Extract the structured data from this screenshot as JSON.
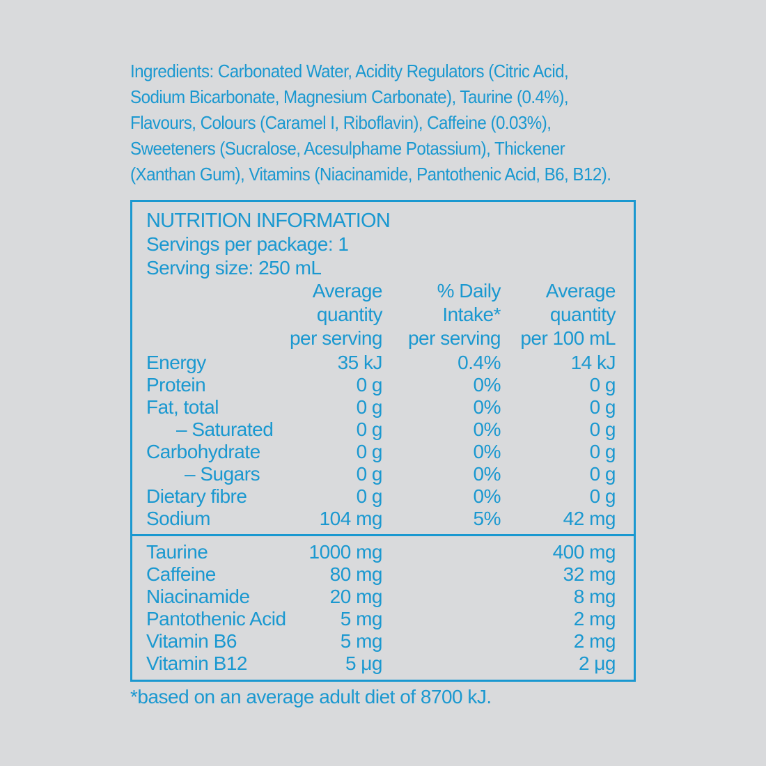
{
  "ingredients": [
    "Ingredients: Carbonated Water, Acidity Regulators (Citric Acid,",
    "Sodium Bicarbonate, Magnesium Carbonate), Taurine (0.4%),",
    "Flavours, Colours (Caramel I, Riboflavin), Caffeine (0.03%),",
    "Sweeteners (Sucralose, Acesulphame Potassium), Thickener",
    "(Xanthan Gum), Vitamins (Niacinamide, Pantothenic Acid, B6, B12)."
  ],
  "nutrition": {
    "title": "NUTRITION INFORMATION",
    "servings": "Servings per package: 1",
    "serving_size": "Serving size: 250 mL",
    "columns": [
      [
        "Average",
        "quantity",
        "per serving"
      ],
      [
        "% Daily",
        "Intake*",
        "per serving"
      ],
      [
        "Average",
        "quantity",
        "per 100 mL"
      ]
    ],
    "rows": [
      {
        "label": "Energy",
        "per_serving": "35 kJ",
        "di": "0.4%",
        "per_100": "14 kJ"
      },
      {
        "label": "Protein",
        "per_serving": "0 g",
        "di": "0%",
        "per_100": "0 g"
      },
      {
        "label": "Fat, total",
        "per_serving": "0 g",
        "di": "0%",
        "per_100": "0 g"
      },
      {
        "label": "– Saturated",
        "per_serving": "0 g",
        "di": "0%",
        "per_100": "0 g"
      },
      {
        "label": "Carbohydrate",
        "per_serving": "0 g",
        "di": "0%",
        "per_100": "0 g"
      },
      {
        "label": "– Sugars",
        "per_serving": "0 g",
        "di": "0%",
        "per_100": "0 g"
      },
      {
        "label": "Dietary fibre",
        "per_serving": "0 g",
        "di": "0%",
        "per_100": "0 g"
      },
      {
        "label": "Sodium",
        "per_serving": "104 mg",
        "di": "5%",
        "per_100": "42 mg"
      }
    ],
    "extras": [
      {
        "label": "Taurine",
        "per_serving": "1000 mg",
        "per_100": "400 mg"
      },
      {
        "label": "Caffeine",
        "per_serving": "80 mg",
        "per_100": "32 mg"
      },
      {
        "label": "Niacinamide",
        "per_serving": "20 mg",
        "per_100": "8 mg"
      },
      {
        "label": "Pantothenic Acid",
        "per_serving": "5 mg",
        "per_100": "2 mg"
      },
      {
        "label": "Vitamin B6",
        "per_serving": "5 mg",
        "per_100": "2 mg"
      },
      {
        "label": "Vitamin B12",
        "per_serving": "5  μg",
        "per_100": "2  μg"
      }
    ]
  },
  "footnote": "*based on an average adult diet of 8700 kJ."
}
